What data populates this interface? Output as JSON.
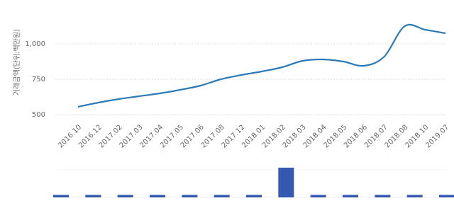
{
  "chart_data": [
    {
      "type": "line",
      "y_label": "거래금액(단위:백만원)",
      "categories": [
        "2016.10",
        "2016.12",
        "2017.02",
        "2017.03",
        "2017.04",
        "2017.05",
        "2017.06",
        "2017.08",
        "2017.12",
        "2018.01",
        "2018.02",
        "2018.03",
        "2018.04",
        "2018.05",
        "2018.06",
        "2018.07",
        "2018.08",
        "2018.10",
        "2019.07"
      ],
      "values": [
        555,
        585,
        610,
        630,
        650,
        675,
        705,
        750,
        780,
        805,
        835,
        880,
        890,
        875,
        845,
        910,
        1125,
        1100,
        1075
      ],
      "color": "#2a7ab8",
      "ylim": [
        460,
        1260
      ],
      "yticks": [
        500,
        750,
        {
          "value": 1000,
          "label": "1,000"
        }
      ],
      "grid": true
    },
    {
      "type": "bar",
      "values": [
        1,
        1,
        1,
        1,
        1,
        1,
        1,
        12,
        1,
        1,
        1,
        1,
        1
      ],
      "color": "#3459b0",
      "ylim": [
        0,
        12
      ]
    }
  ]
}
